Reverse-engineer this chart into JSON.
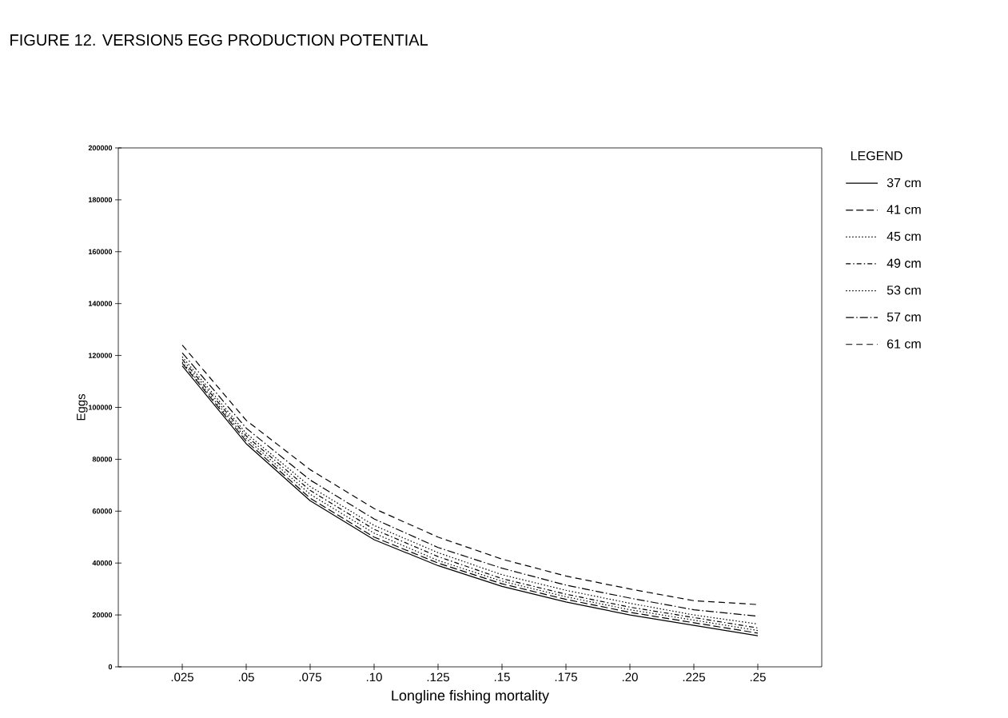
{
  "chart_data": {
    "type": "line",
    "title": "FIGURE 12. VERSION5 EGG PRODUCTION POTENTIAL",
    "xlabel": "Longline fishing mortality",
    "ylabel": "Eggs",
    "legend_title": "LEGEND",
    "legend": "right",
    "grid": false,
    "marker": "none",
    "x": [
      0.025,
      0.05,
      0.075,
      0.1,
      0.125,
      0.15,
      0.175,
      0.2,
      0.225,
      0.25
    ],
    "xlim": [
      0,
      0.275
    ],
    "ylim": [
      0,
      200000
    ],
    "xticks": [
      {
        "value": 0.025,
        "label": ".025"
      },
      {
        "value": 0.05,
        "label": ".05"
      },
      {
        "value": 0.075,
        "label": ".075"
      },
      {
        "value": 0.1,
        "label": ".10"
      },
      {
        "value": 0.125,
        "label": ".125"
      },
      {
        "value": 0.15,
        "label": ".15"
      },
      {
        "value": 0.175,
        "label": ".175"
      },
      {
        "value": 0.2,
        "label": ".20"
      },
      {
        "value": 0.225,
        "label": ".225"
      },
      {
        "value": 0.25,
        "label": ".25"
      }
    ],
    "yticks": [
      0,
      20000,
      40000,
      60000,
      80000,
      100000,
      120000,
      140000,
      160000,
      180000,
      200000
    ],
    "series": [
      {
        "name": "37 cm",
        "color": "#000000",
        "line_style": "solid",
        "values": [
          116000,
          86000,
          64000,
          49000,
          39000,
          31000,
          25000,
          20000,
          16000,
          12000
        ]
      },
      {
        "name": "41 cm",
        "color": "#000000",
        "line_style": "dashed",
        "values": [
          117000,
          87000,
          65000,
          50000,
          40000,
          32000,
          26000,
          21000,
          17000,
          13000
        ]
      },
      {
        "name": "45 cm",
        "color": "#000000",
        "line_style": "dotted",
        "values": [
          117500,
          88000,
          66500,
          51500,
          41000,
          33000,
          27000,
          22000,
          18000,
          14000
        ]
      },
      {
        "name": "49 cm",
        "color": "#000000",
        "line_style": "dashed",
        "values": [
          118500,
          89000,
          68000,
          53000,
          42500,
          34000,
          28000,
          23000,
          19000,
          15000
        ]
      },
      {
        "name": "53 cm",
        "color": "#000000",
        "line_style": "dotted",
        "values": [
          119500,
          90000,
          69500,
          54500,
          44000,
          35500,
          29500,
          24500,
          20000,
          16500
        ]
      },
      {
        "name": "57 cm",
        "color": "#000000",
        "line_style": "dashed",
        "values": [
          121000,
          92000,
          72000,
          57000,
          46000,
          38000,
          31500,
          26500,
          22000,
          19500
        ]
      },
      {
        "name": "61 cm",
        "color": "#000000",
        "line_style": "dashed",
        "values": [
          124000,
          95000,
          76000,
          61000,
          50000,
          41500,
          35000,
          30000,
          25500,
          24000
        ]
      }
    ]
  }
}
